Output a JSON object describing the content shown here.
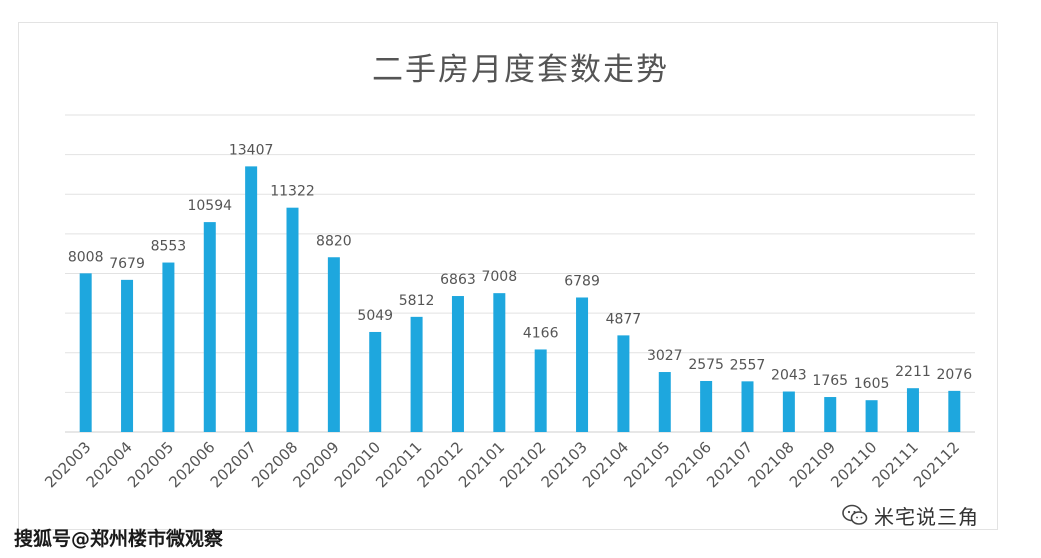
{
  "chart_data": {
    "type": "bar",
    "title": "二手房月度套数走势",
    "categories": [
      "202003",
      "202004",
      "202005",
      "202006",
      "202007",
      "202008",
      "202009",
      "202010",
      "202011",
      "202012",
      "202101",
      "202102",
      "202103",
      "202104",
      "202105",
      "202106",
      "202107",
      "202108",
      "202109",
      "202110",
      "202111",
      "202112"
    ],
    "values": [
      8008,
      7679,
      8553,
      10594,
      13407,
      11322,
      8820,
      5049,
      5812,
      6863,
      7008,
      4166,
      6789,
      4877,
      3027,
      2575,
      2557,
      2043,
      1765,
      1605,
      2211,
      2076
    ],
    "ylim": [
      0,
      16000
    ],
    "grid": true,
    "legend": "none",
    "bar_color": "#1ea7de",
    "label_color": "#555555"
  },
  "footer": {
    "source_text": "搜狐号@郑州楼市微观察",
    "watermark_text": "米宅说三角"
  }
}
